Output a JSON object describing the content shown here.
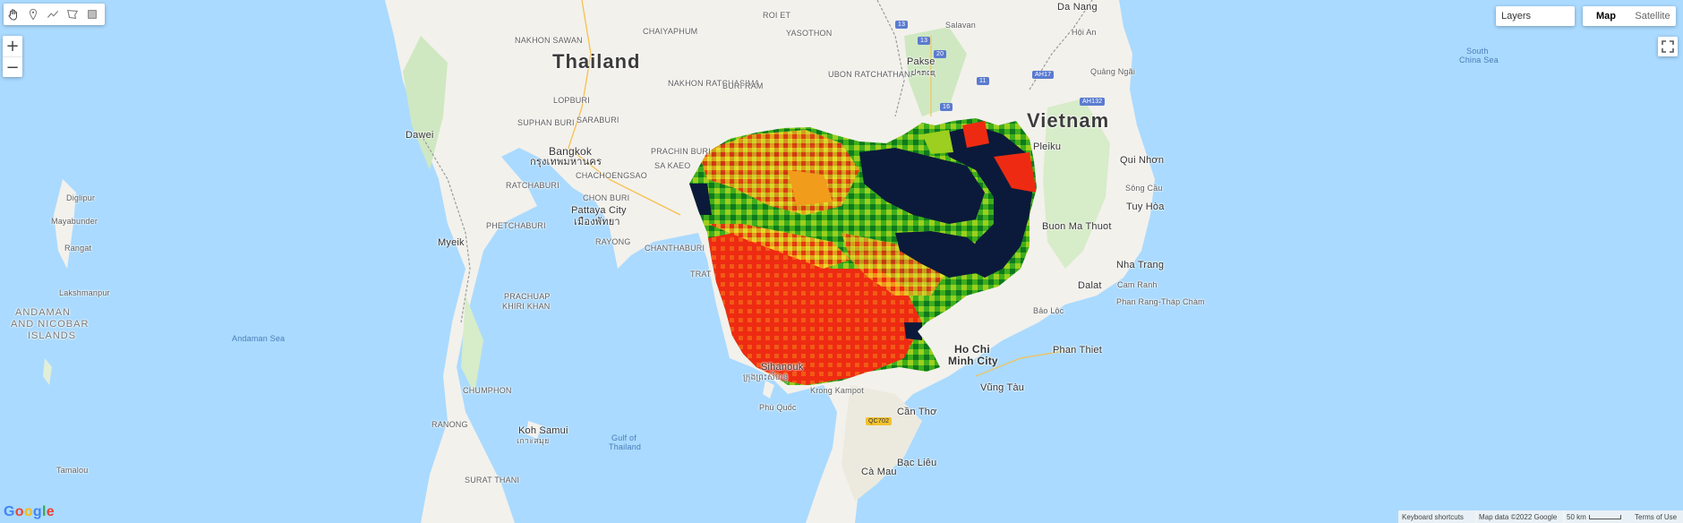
{
  "toolbar": {
    "tools": [
      {
        "name": "hand-tool",
        "icon": "hand-icon"
      },
      {
        "name": "point-tool",
        "icon": "pin-icon"
      },
      {
        "name": "line-tool",
        "icon": "polyline-icon"
      },
      {
        "name": "polygon-tool",
        "icon": "polygon-icon"
      },
      {
        "name": "rectangle-tool",
        "icon": "rectangle-icon"
      }
    ]
  },
  "zoom": {
    "in_label": "+",
    "out_label": "−"
  },
  "layers": {
    "label": "Layers"
  },
  "map_type": {
    "map_label": "Map",
    "satellite_label": "Satellite",
    "selected": "Map"
  },
  "labels": {
    "thailand": "Thailand",
    "vietnam": "Vietnam",
    "bangkok": "Bangkok",
    "bangkok_thai": "กรุงเทพมหานคร",
    "pattaya": "Pattaya City",
    "pattaya_thai": "เมืองพัทยา",
    "chachoengsao": "CHACHOENGSAO",
    "sa_kaeo": "SA KAEO",
    "prachin_buri": "PRACHIN BURI",
    "chon_buri": "CHON BURI",
    "rayong": "RAYONG",
    "chanthaburi": "CHANTHABURI",
    "trat": "TRAT",
    "ratchaburi": "RATCHABURI",
    "phetchaburi": "PHETCHABURI",
    "suphan_buri": "SUPHAN BURI",
    "lopburi": "LOPBURI",
    "saraburi": "SARABURI",
    "nakhon_sawan": "NAKHON SAWAN",
    "chaiyaphum": "CHAIYAPHUM",
    "nakhon_ratchasima": "NAKHON RATCHASIMA",
    "buri_ram": "BURI RAM",
    "roi_et": "ROI ET",
    "yasothon": "YASOTHON",
    "ubon": "UBON RATCHATHANI",
    "pakse": "Pakse",
    "pakse_lao": "ປາກເຊ",
    "salavan": "Salavan",
    "da_nang": "Da Nang",
    "hoi_an": "Hội An",
    "quang_ngai": "Quảng Ngãi",
    "pleiku": "Pleiku",
    "qui_nhon": "Qui Nhơn",
    "song_cau": "Sông Cầu",
    "tuy_hoa": "Tuy Hòa",
    "buon_ma_thuot": "Buon Ma Thuot",
    "nha_trang": "Nha Trang",
    "dalat": "Dalat",
    "cam_ranh": "Cam Ranh",
    "bao_loc": "Bảo Lộc",
    "phan_rang": "Phan Rang-Tháp Chàm",
    "phan_thiet": "Phan Thiet",
    "hcmc_1": "Ho Chi",
    "hcmc_2": "Minh City",
    "vung_tau": "Vũng Tàu",
    "can_tho": "Cần Thơ",
    "bac_lieu": "Bạc Liêu",
    "ca_mau": "Cà Mau",
    "phu_quoc": "Phú Quốc",
    "sihanouk_1": "Sihanouk",
    "sihanouk_km": "ក្រុងព្រះសីហនុ",
    "kampot": "Krong Kampot",
    "dawei": "Dawei",
    "myeik": "Myeik",
    "mayabunder": "Mayabunder",
    "rangat": "Rangat",
    "diglipur": "Diglipur",
    "lakshmanpur": "Lakshmanpur",
    "andaman_1": "ANDAMAN",
    "andaman_2": "AND NICOBAR",
    "andaman_3": "ISLANDS",
    "andaman_sea": "Andaman Sea",
    "south_china_sea_1": "South",
    "south_china_sea_2": "China Sea",
    "gulf_1": "Gulf of",
    "gulf_2": "Thailand",
    "prachuap_1": "PRACHUAP",
    "prachuap_2": "KHIRI KHAN",
    "chumphon": "CHUMPHON",
    "ranong": "RANONG",
    "koh_samui": "Koh Samui",
    "koh_samui_thai": "เกาะสมุย",
    "surat_thani": "SURAT THANI",
    "tamalou": "Tamalou",
    "road_13a": "13",
    "road_13b": "13",
    "road_20": "20",
    "road_11": "11",
    "road_16": "16",
    "road_ah17": "AH17",
    "road_ah132": "AH132",
    "road_qc702": "QC702"
  },
  "footer": {
    "keyboard": "Keyboard shortcuts",
    "attribution": "Map data ©2022 Google",
    "scale": "50 km",
    "terms": "Terms of Use"
  },
  "overlay": {
    "legend_colors": [
      "#0b1a3a",
      "#0f7a1d",
      "#3fae1b",
      "#9ccf1f",
      "#f2e12c",
      "#f29c1c",
      "#ee2b12"
    ],
    "region": "Cambodia raster overlay"
  }
}
